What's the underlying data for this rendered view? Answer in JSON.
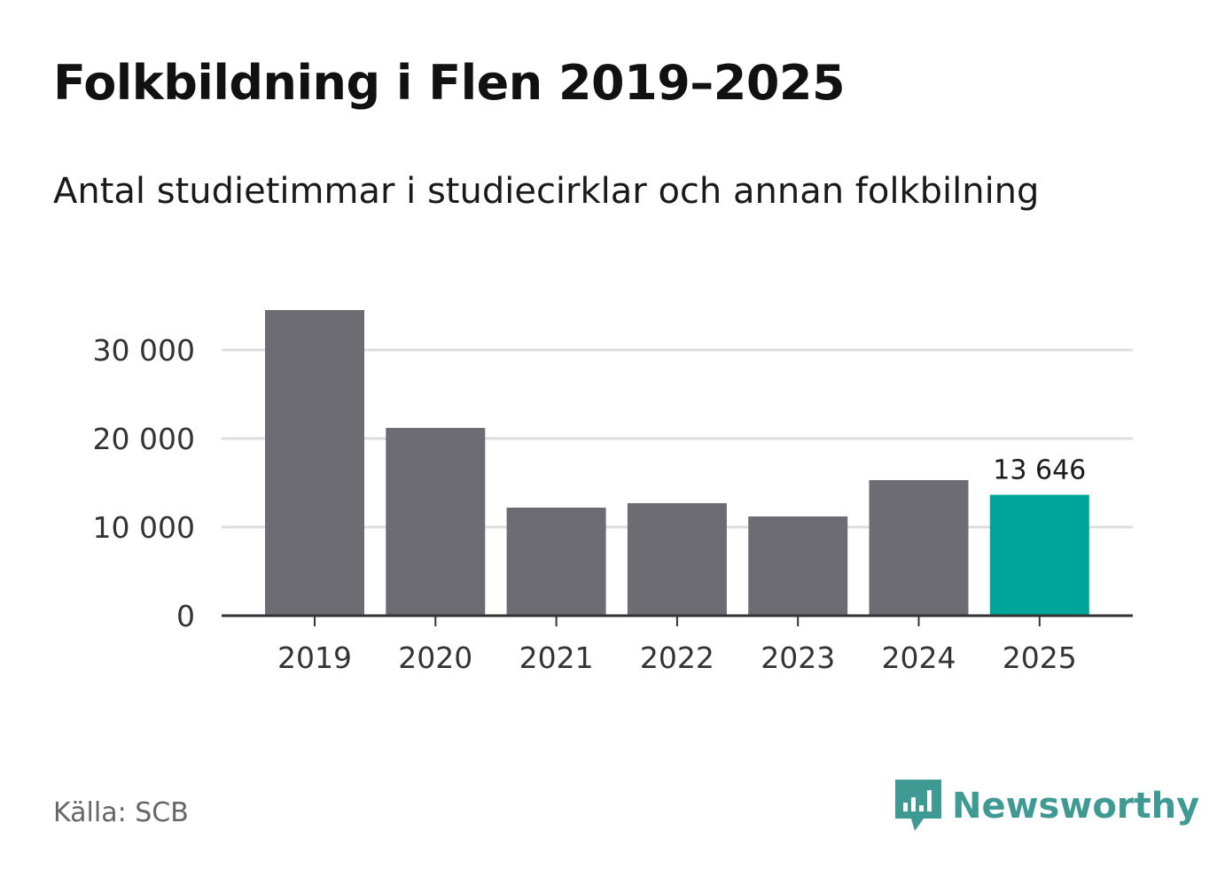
{
  "title": "Folkbildning i Flen 2019–2025",
  "subtitle": "Antal studietimmar i studiecirklar och annan folkbilning",
  "source": "Källa: SCB",
  "brand": {
    "name": "Newsworthy",
    "icon": "newsworthy-logo-icon",
    "color": "#3f9a94"
  },
  "chart_data": {
    "type": "bar",
    "categories": [
      "2019",
      "2020",
      "2021",
      "2022",
      "2023",
      "2024",
      "2025"
    ],
    "values": [
      34500,
      21200,
      12200,
      12700,
      11200,
      15300,
      13646
    ],
    "y_ticks": [
      0,
      10000,
      20000,
      30000
    ],
    "y_tick_labels": [
      "0",
      "10 000",
      "20 000",
      "30 000"
    ],
    "ylim": [
      0,
      35000
    ],
    "grid": true,
    "highlight": {
      "index": 6,
      "label": "13 646"
    },
    "colors": {
      "bar": "#6d6c72",
      "highlight": "#00a59a",
      "grid": "#dddddd",
      "axis": "#333333"
    }
  }
}
